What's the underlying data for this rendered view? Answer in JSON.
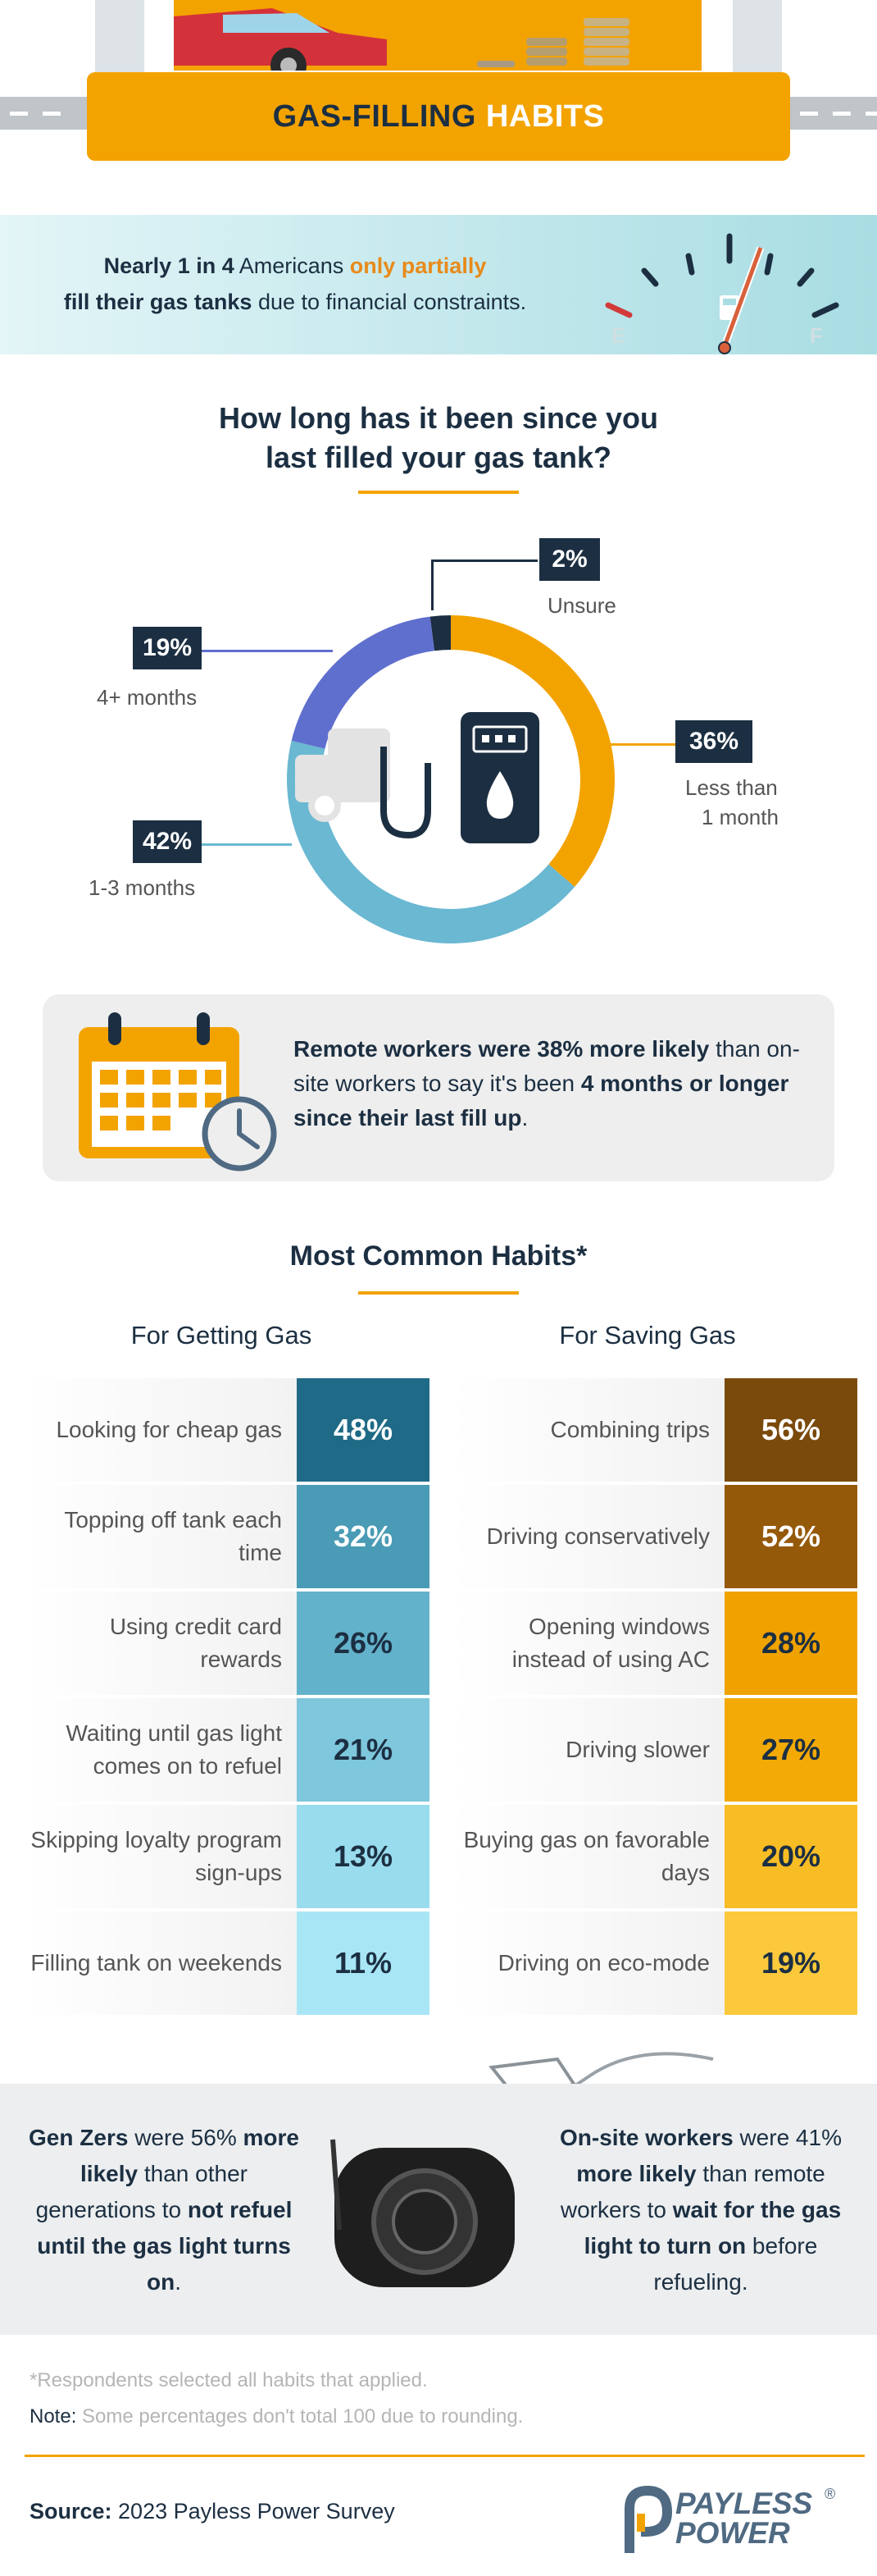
{
  "header": {
    "title_part1": "GAS-FILLING",
    "title_part2": "HABITS"
  },
  "stat_banner": {
    "part1": "Nearly 1 in 4",
    "part2": " Americans ",
    "part3": "only partially",
    "part4": "fill their gas tanks",
    "part5": " due to financial constraints.",
    "gauge_empty": "E",
    "gauge_full": "F"
  },
  "question": {
    "line1": "How long has it been since you",
    "line2": "last filled your gas tank?"
  },
  "chart_data": {
    "type": "donut",
    "slices": [
      {
        "label": "Less than 1 month",
        "value": 36,
        "display": "36%",
        "color": "#f3a300"
      },
      {
        "label": "1-3 months",
        "value": 42,
        "display": "42%",
        "color": "#6ab8d2"
      },
      {
        "label": "4+ months",
        "value": 19,
        "display": "19%",
        "color": "#5f6fce"
      },
      {
        "label": "Unsure",
        "value": 2,
        "display": "2%",
        "color": "#1c2f42"
      }
    ],
    "label_lines": {
      "less_than_1_month": [
        "Less than",
        "1 month"
      ],
      "one_to_three": "1-3 months",
      "four_plus": "4+ months",
      "unsure": "Unsure"
    }
  },
  "remote": {
    "bold1": "Remote workers were 38% more likely",
    "text1": " than on-site workers to say it's been ",
    "bold2": "4 months or longer since their last fill up",
    "text2": "."
  },
  "habits": {
    "title": "Most Common Habits*",
    "getting_title": "For Getting Gas",
    "saving_title": "For Saving Gas",
    "getting": [
      {
        "label": "Looking for cheap gas",
        "value": "48%",
        "bg": "#1f6a86",
        "fg": "#ffffff"
      },
      {
        "label": "Topping off tank each time",
        "value": "32%",
        "bg": "#4a9bb5",
        "fg": "#ffffff"
      },
      {
        "label": "Using credit card rewards",
        "value": "26%",
        "bg": "#63b2cb",
        "fg": "#1c2f42"
      },
      {
        "label": "Waiting until gas light comes on to refuel",
        "value": "21%",
        "bg": "#7ec7dc",
        "fg": "#1c2f42"
      },
      {
        "label": "Skipping loyalty program sign-ups",
        "value": "13%",
        "bg": "#98dcee",
        "fg": "#1c2f42"
      },
      {
        "label": "Filling tank on weekends",
        "value": "11%",
        "bg": "#a8e6f6",
        "fg": "#1c2f42"
      }
    ],
    "saving": [
      {
        "label": "Combining trips",
        "value": "56%",
        "bg": "#7a4a0c",
        "fg": "#ffffff"
      },
      {
        "label": "Driving conservatively",
        "value": "52%",
        "bg": "#95590a",
        "fg": "#ffffff"
      },
      {
        "label": "Opening windows instead of using AC",
        "value": "28%",
        "bg": "#f0a200",
        "fg": "#1c2f42"
      },
      {
        "label": "Driving slower",
        "value": "27%",
        "bg": "#f3aa06",
        "fg": "#1c2f42"
      },
      {
        "label": "Buying gas on favorable days",
        "value": "20%",
        "bg": "#f8bd25",
        "fg": "#1c2f42"
      },
      {
        "label": "Driving on eco-mode",
        "value": "19%",
        "bg": "#fbc93b",
        "fg": "#1c2f42"
      }
    ]
  },
  "genz": {
    "bold1": "Gen Zers",
    "text1": " were 56% ",
    "bold2": "more likely",
    "text2": " than other generations to ",
    "bold3": "not refuel until the gas light turns on",
    "text3": "."
  },
  "onsite": {
    "bold1": "On-site workers",
    "text1": " were 41% ",
    "bold2": "more likely",
    "text2": " than remote workers to ",
    "bold3": "wait for the gas light to turn on",
    "text3": " before refueling."
  },
  "footer": {
    "note1": "*Respondents selected all habits that applied.",
    "note2_key": "Note:",
    "note2": " Some percentages don't total 100 due to rounding.",
    "source_key": "Source:",
    "source": " 2023 Payless Power Survey",
    "logo_line1": "PAYLESS",
    "logo_line2": "POWER",
    "logo_mark": "®"
  },
  "colors": {
    "accent": "#f3a300",
    "navy": "#1c2f42",
    "teal": "#a8dde3"
  }
}
